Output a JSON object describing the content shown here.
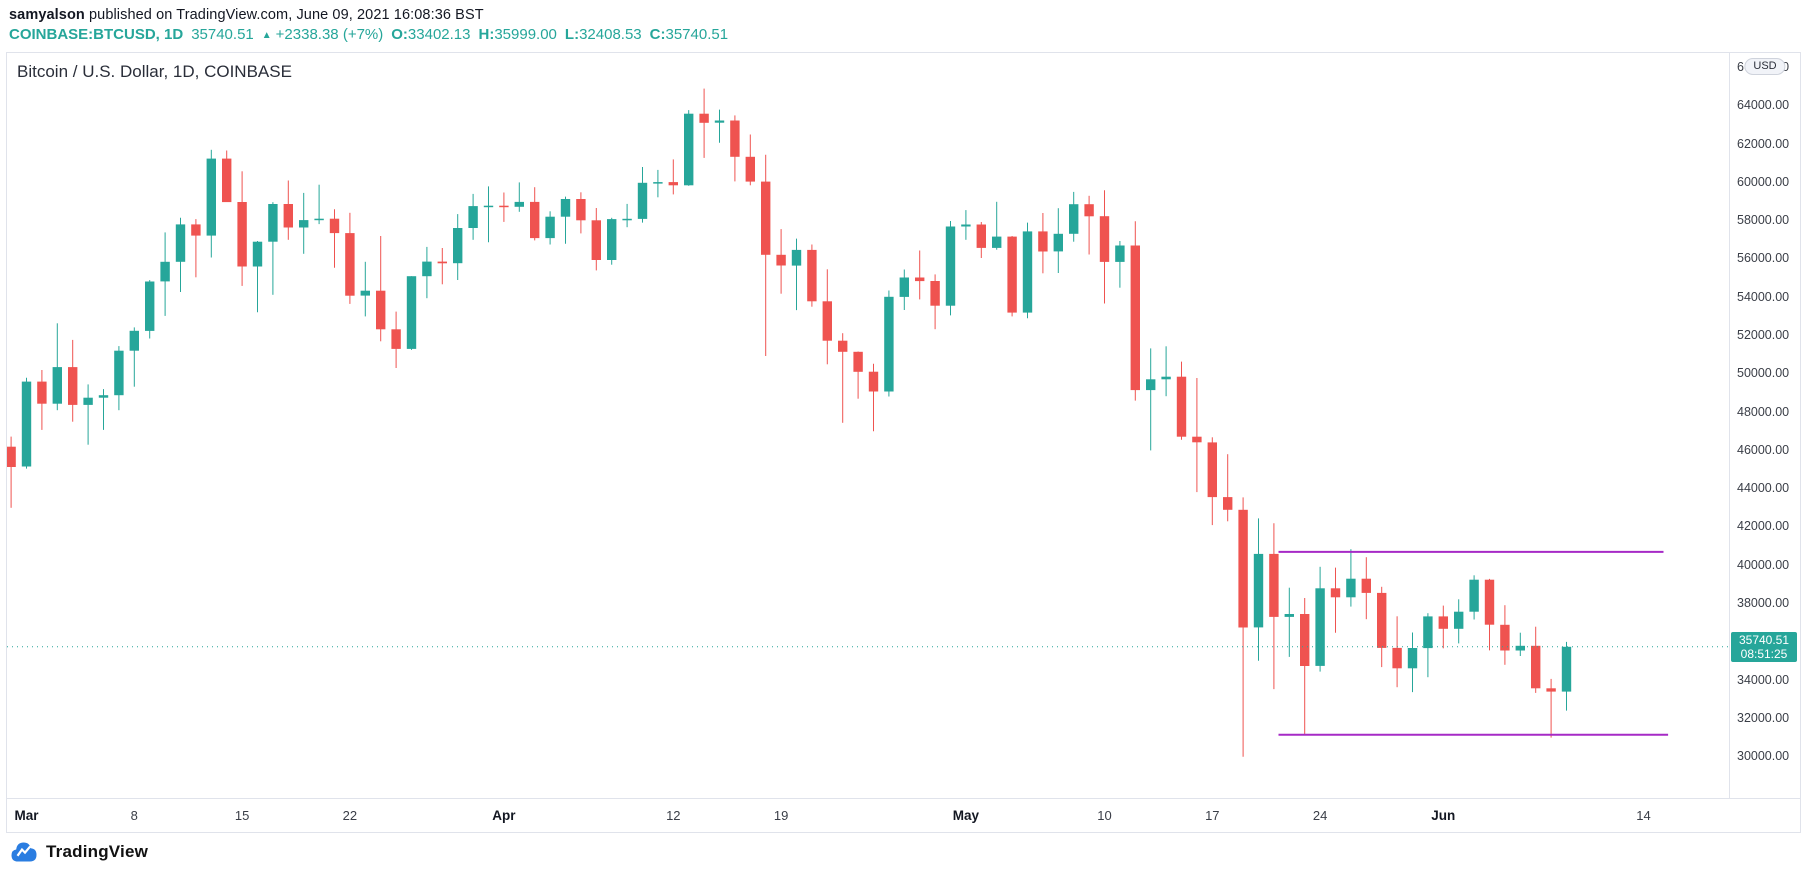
{
  "theme": {
    "teal": "#26a69a",
    "red": "#ef5350",
    "purple": "#a62ac6",
    "text": "#131722",
    "border": "#e0e3eb",
    "brand-blue": "#2a7de1"
  },
  "header": {
    "username": "samyalson",
    "published_text": " published on TradingView.com, June 09, 2021 16:08:36 BST"
  },
  "symbol_line": {
    "symbol_interval": "COINBASE:BTCUSD, 1D",
    "last": "35740.51",
    "up_triangle": "▲",
    "change": "+2338.38 (+7%)",
    "ohlc": [
      {
        "label": "O:",
        "value": "33402.13"
      },
      {
        "label": "H:",
        "value": "35999.00"
      },
      {
        "label": "L:",
        "value": "32408.53"
      },
      {
        "label": "C:",
        "value": "35740.51"
      }
    ]
  },
  "chart": {
    "legend": "Bitcoin / U.S. Dollar, 1D, COINBASE",
    "currency_label": "USD",
    "last_price": "35740.51",
    "countdown": "08:51:25"
  },
  "footer": {
    "brand": "TradingView"
  },
  "chart_data": {
    "type": "candlestick",
    "title": "Bitcoin / U.S. Dollar, 1D, COINBASE",
    "symbol": "COINBASE:BTCUSD",
    "interval": "1D",
    "start_date": "2021-02-28",
    "ohlc_format": [
      "open",
      "high",
      "low",
      "close"
    ],
    "y_axis": {
      "min": 27950,
      "max": 66600,
      "tick_start": 30000,
      "tick_end": 66000,
      "tick_step": 2000,
      "currency": "USD"
    },
    "x_axis_labels": [
      {
        "label": "Mar",
        "day": 1,
        "month": true
      },
      {
        "label": "8",
        "day": 8
      },
      {
        "label": "15",
        "day": 15
      },
      {
        "label": "22",
        "day": 22
      },
      {
        "label": "Apr",
        "day": 32,
        "month": true
      },
      {
        "label": "12",
        "day": 43
      },
      {
        "label": "19",
        "day": 50
      },
      {
        "label": "May",
        "day": 62,
        "month": true
      },
      {
        "label": "10",
        "day": 71
      },
      {
        "label": "17",
        "day": 78
      },
      {
        "label": "24",
        "day": 85
      },
      {
        "label": "Jun",
        "day": 93,
        "month": true
      },
      {
        "label": "14",
        "day": 106
      }
    ],
    "last_price_value": 35740.51,
    "countdown": "08:51:25",
    "colors": {
      "up": "#26a69a",
      "down": "#ef5350",
      "trendline": "#a62ac6",
      "last_price_line": "#26a69a"
    },
    "trendlines": [
      {
        "name": "resistance",
        "price": 40700,
        "start_day": 82.3,
        "end_day": 107.3
      },
      {
        "name": "support",
        "price": 31150,
        "start_day": 82.3,
        "end_day": 107.6
      }
    ],
    "candles": [
      [
        46194,
        46719,
        43000,
        45135
      ],
      [
        45160,
        49790,
        45050,
        49595
      ],
      [
        49595,
        50200,
        47070,
        48440
      ],
      [
        48440,
        52640,
        48100,
        50349
      ],
      [
        50349,
        51773,
        47500,
        48374
      ],
      [
        48374,
        49448,
        46300,
        48751
      ],
      [
        48751,
        49200,
        47070,
        48882
      ],
      [
        48882,
        51450,
        48100,
        51206
      ],
      [
        51206,
        52425,
        49328,
        52246
      ],
      [
        52246,
        54895,
        51845,
        54824
      ],
      [
        54824,
        57387,
        53025,
        55850
      ],
      [
        55850,
        58150,
        54273,
        57805
      ],
      [
        57805,
        58081,
        55040,
        57221
      ],
      [
        57221,
        61701,
        56078,
        61243
      ],
      [
        61243,
        61665,
        58974,
        58972
      ],
      [
        58972,
        60580,
        54590,
        55605
      ],
      [
        55605,
        56938,
        53221,
        56900
      ],
      [
        56900,
        58965,
        54125,
        58870
      ],
      [
        58870,
        60100,
        57000,
        57644
      ],
      [
        57644,
        59449,
        56270,
        58030
      ],
      [
        58030,
        59880,
        57820,
        58102
      ],
      [
        58102,
        58600,
        55540,
        57351
      ],
      [
        57351,
        58410,
        53650,
        54083
      ],
      [
        54083,
        55850,
        53000,
        54340
      ],
      [
        54340,
        57200,
        51700,
        52324
      ],
      [
        52324,
        53250,
        50305,
        51302
      ],
      [
        51302,
        55100,
        51250,
        55100
      ],
      [
        55100,
        56630,
        53950,
        55860
      ],
      [
        55860,
        56570,
        54675,
        55773
      ],
      [
        55773,
        58342,
        54900,
        57614
      ],
      [
        57614,
        59397,
        57000,
        58760
      ],
      [
        58760,
        59787,
        56867,
        58779
      ],
      [
        58779,
        59470,
        57937,
        58726
      ],
      [
        58726,
        60000,
        58463,
        58981
      ],
      [
        58981,
        59750,
        56971,
        57090
      ],
      [
        57090,
        58490,
        56755,
        58206
      ],
      [
        58206,
        59255,
        56789,
        59130
      ],
      [
        59130,
        59480,
        57333,
        58019
      ],
      [
        58019,
        58660,
        55400,
        55947
      ],
      [
        55947,
        58150,
        55700,
        58083
      ],
      [
        58083,
        58874,
        57660,
        58095
      ],
      [
        58095,
        60800,
        57900,
        59978
      ],
      [
        59978,
        60650,
        59222,
        60014
      ],
      [
        60014,
        61199,
        59370,
        59846
      ],
      [
        59846,
        63775,
        59819,
        63588
      ],
      [
        63588,
        64899,
        61277,
        63113
      ],
      [
        63113,
        63800,
        62070,
        63229
      ],
      [
        63229,
        63500,
        60050,
        61334
      ],
      [
        61334,
        62500,
        59845,
        60041
      ],
      [
        60041,
        61439,
        50931,
        56216
      ],
      [
        56216,
        57560,
        54187,
        55655
      ],
      [
        55655,
        57062,
        53329,
        56473
      ],
      [
        56473,
        56757,
        53508,
        53787
      ],
      [
        53787,
        55459,
        50500,
        51731
      ],
      [
        51731,
        52120,
        47440,
        51153
      ],
      [
        51153,
        51167,
        48700,
        50110
      ],
      [
        50110,
        50530,
        47000,
        49075
      ],
      [
        49075,
        54350,
        48817,
        54021
      ],
      [
        54021,
        55448,
        53333,
        55033
      ],
      [
        55033,
        56440,
        53887,
        54846
      ],
      [
        54846,
        55195,
        52330,
        53555
      ],
      [
        53555,
        57984,
        53050,
        57694
      ],
      [
        57694,
        58550,
        57000,
        57800
      ],
      [
        57800,
        57931,
        56050,
        56578
      ],
      [
        56578,
        58986,
        56483,
        57169
      ],
      [
        57169,
        57200,
        53000,
        53200
      ],
      [
        53200,
        57900,
        52900,
        57441
      ],
      [
        57441,
        58400,
        55250,
        56393
      ],
      [
        56393,
        58650,
        55266,
        57314
      ],
      [
        57314,
        59500,
        56900,
        58862
      ],
      [
        58862,
        59300,
        56232,
        58232
      ],
      [
        58232,
        59592,
        53672,
        55847
      ],
      [
        55847,
        56938,
        54500,
        56704
      ],
      [
        56704,
        57973,
        48600,
        49150
      ],
      [
        49150,
        51330,
        46000,
        49716
      ],
      [
        49716,
        51438,
        48832,
        49850
      ],
      [
        49850,
        50640,
        46555,
        46715
      ],
      [
        46715,
        49780,
        43825,
        46420
      ],
      [
        46420,
        46686,
        42101,
        43564
      ],
      [
        43564,
        45800,
        42300,
        42900
      ],
      [
        42900,
        43546,
        30000,
        36755
      ],
      [
        36755,
        42450,
        35010,
        40596
      ],
      [
        40596,
        42200,
        33533,
        37304
      ],
      [
        37304,
        38830,
        35217,
        37458
      ],
      [
        37458,
        38290,
        31111,
        34742
      ],
      [
        34742,
        39920,
        34446,
        38796
      ],
      [
        38796,
        39880,
        36480,
        38324
      ],
      [
        38324,
        40841,
        37841,
        39297
      ],
      [
        39297,
        40420,
        37184,
        38556
      ],
      [
        38556,
        38877,
        34684,
        35684
      ],
      [
        35684,
        37338,
        33632,
        34616
      ],
      [
        34616,
        36488,
        33379,
        35678
      ],
      [
        35678,
        37499,
        34153,
        37332
      ],
      [
        37332,
        37894,
        35666,
        36684
      ],
      [
        36684,
        38225,
        35920,
        37575
      ],
      [
        37575,
        39476,
        37170,
        39246
      ],
      [
        39246,
        39289,
        35555,
        36894
      ],
      [
        36894,
        37917,
        34800,
        35551
      ],
      [
        35551,
        36480,
        35261,
        35796
      ],
      [
        35796,
        36790,
        33333,
        33575
      ],
      [
        33575,
        34068,
        31000,
        33402
      ],
      [
        33402,
        35999,
        32408,
        35740.51
      ]
    ]
  }
}
